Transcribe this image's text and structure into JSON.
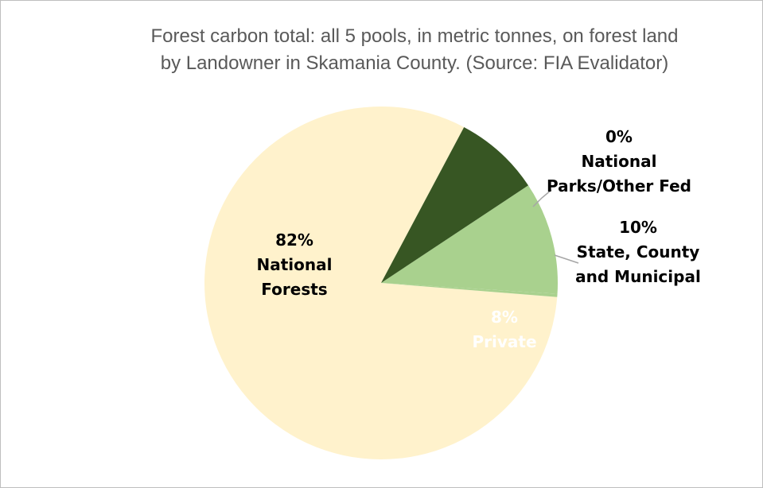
{
  "chart_data": {
    "type": "pie",
    "title_lines": [
      "Forest carbon total: all 5 pools, in metric tonnes, on forest land",
      "by Landowner in Skamania County. (Source: FIA Evalidator)"
    ],
    "slices": [
      {
        "name": "National Forests",
        "label_lines": [
          "82%",
          "National",
          "Forests"
        ],
        "percent_label": "82%",
        "value": 81.5,
        "color": "#fff2cc",
        "label_color": "#000000"
      },
      {
        "name": "National Parks/Other Fed",
        "label_lines": [
          "0%",
          "National",
          "Parks/Other Fed"
        ],
        "percent_label": "0%",
        "value": 0.3,
        "color": "#a9d18e",
        "label_color": "#000000"
      },
      {
        "name": "State, County and Municipal",
        "label_lines": [
          "10%",
          "State, County",
          "and Municipal"
        ],
        "percent_label": "10%",
        "value": 10.3,
        "color": "#a9d18e",
        "label_color": "#000000"
      },
      {
        "name": "Private",
        "label_lines": [
          "8%",
          "Private"
        ],
        "percent_label": "8%",
        "value": 7.9,
        "color": "#375623",
        "label_color": "#ffffff"
      }
    ],
    "start_angle_deg": 62,
    "direction": "counterclockwise",
    "legend": "none"
  }
}
